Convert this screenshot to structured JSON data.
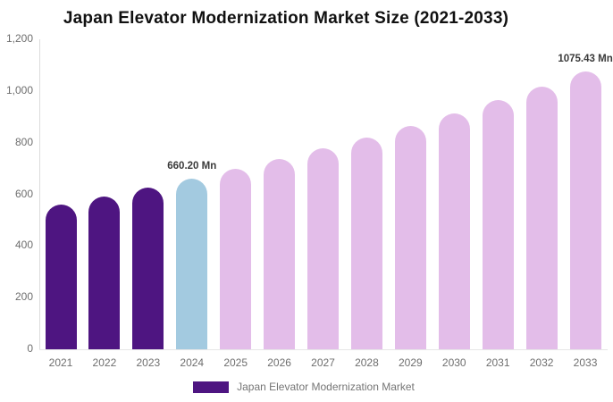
{
  "title": "Japan Elevator Modernization Market Size (2021-2033)",
  "colors": {
    "historical": "#4E1581",
    "base_year": "#A3CAE0",
    "forecast": "#E3BDE9",
    "axis_line": "#DBDBDB",
    "baseline": "#E7E7E7",
    "tick_label": "#6E6E6E",
    "data_label": "#3A3A3A",
    "legend_text": "#757575"
  },
  "legend": {
    "items": [
      {
        "label": "Japan Elevator Modernization Market",
        "color": "#4E1581"
      }
    ]
  },
  "chart_data": {
    "type": "bar",
    "title": "Japan Elevator Modernization Market Size (2021-2033)",
    "categories": [
      "2021",
      "2022",
      "2023",
      "2024",
      "2025",
      "2026",
      "2027",
      "2028",
      "2029",
      "2030",
      "2031",
      "2032",
      "2033"
    ],
    "series": [
      {
        "name": "Japan Elevator Modernization Market",
        "values": [
          561.2,
          592.5,
          625.4,
          660.2,
          697.0,
          735.8,
          776.7,
          820.0,
          865.6,
          913.8,
          964.7,
          1018.4,
          1075.43
        ]
      }
    ],
    "unit": "Mn",
    "xlabel": "",
    "ylabel": "",
    "ylim": [
      0,
      1200
    ],
    "ytick_values": [
      0,
      200,
      400,
      600,
      800,
      1000,
      1200
    ],
    "ytick_labels": [
      "0",
      "200",
      "400",
      "600",
      "800",
      "1,000",
      "1,200"
    ],
    "grid": false,
    "legend_position": "bottom",
    "color_keys": [
      "historical",
      "historical",
      "historical",
      "base_year",
      "forecast",
      "forecast",
      "forecast",
      "forecast",
      "forecast",
      "forecast",
      "forecast",
      "forecast",
      "forecast"
    ],
    "data_labels": [
      {
        "category": "2024",
        "text": "660.20 Mn"
      },
      {
        "category": "2033",
        "text": "1075.43 Mn"
      }
    ]
  }
}
